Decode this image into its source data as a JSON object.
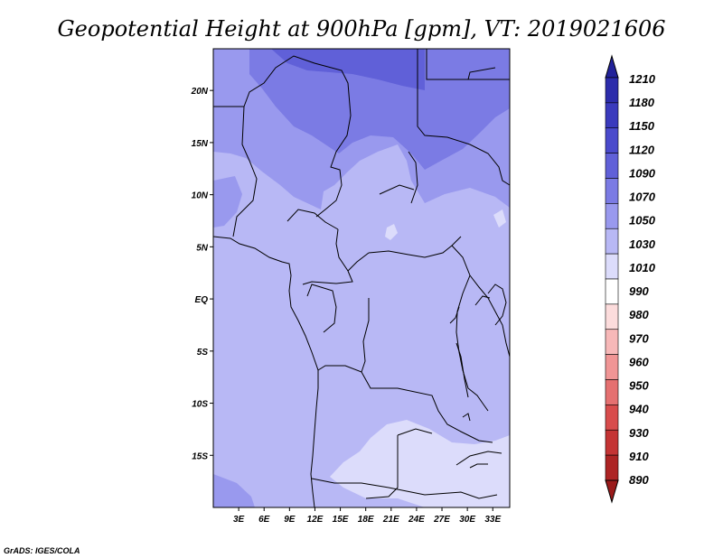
{
  "title": "Geopotential Height at 900hPa [gpm], VT: 2019021606",
  "footer": "GrADS: IGES/COLA",
  "map": {
    "lon_range": [
      0,
      35
    ],
    "lat_range": [
      -20,
      24
    ],
    "lat_ticks": [
      "20N",
      "15N",
      "10N",
      "5N",
      "EQ",
      "5S",
      "10S",
      "15S"
    ],
    "lat_tick_values": [
      20,
      15,
      10,
      5,
      0,
      -5,
      -10,
      -15
    ],
    "lon_ticks": [
      "3E",
      "6E",
      "9E",
      "12E",
      "15E",
      "18E",
      "21E",
      "24E",
      "27E",
      "30E",
      "33E"
    ],
    "lon_tick_values": [
      3,
      6,
      9,
      12,
      15,
      18,
      21,
      24,
      27,
      30,
      33
    ]
  },
  "colorbar": {
    "labels": [
      "1210",
      "1180",
      "1150",
      "1120",
      "1090",
      "1070",
      "1050",
      "1030",
      "1010",
      "990",
      "980",
      "970",
      "960",
      "950",
      "940",
      "930",
      "910",
      "890"
    ],
    "colors": [
      "#22229a",
      "#2c2cab",
      "#3a3abd",
      "#4a4acc",
      "#6060d8",
      "#7b7be4",
      "#9999ee",
      "#b8b8f5",
      "#dcdcfb",
      "#ffffff",
      "#fcdcdc",
      "#f7b8b8",
      "#f09595",
      "#e57070",
      "#d84c4c",
      "#c43434",
      "#ad2424",
      "#9a1a1a"
    ]
  },
  "colors": {
    "level_1010": "#dcdcfb",
    "level_1030": "#b8b8f5",
    "level_1050": "#9999ee",
    "level_1070": "#7b7be4",
    "level_1090": "#6060d8",
    "boundary": "#000000"
  }
}
